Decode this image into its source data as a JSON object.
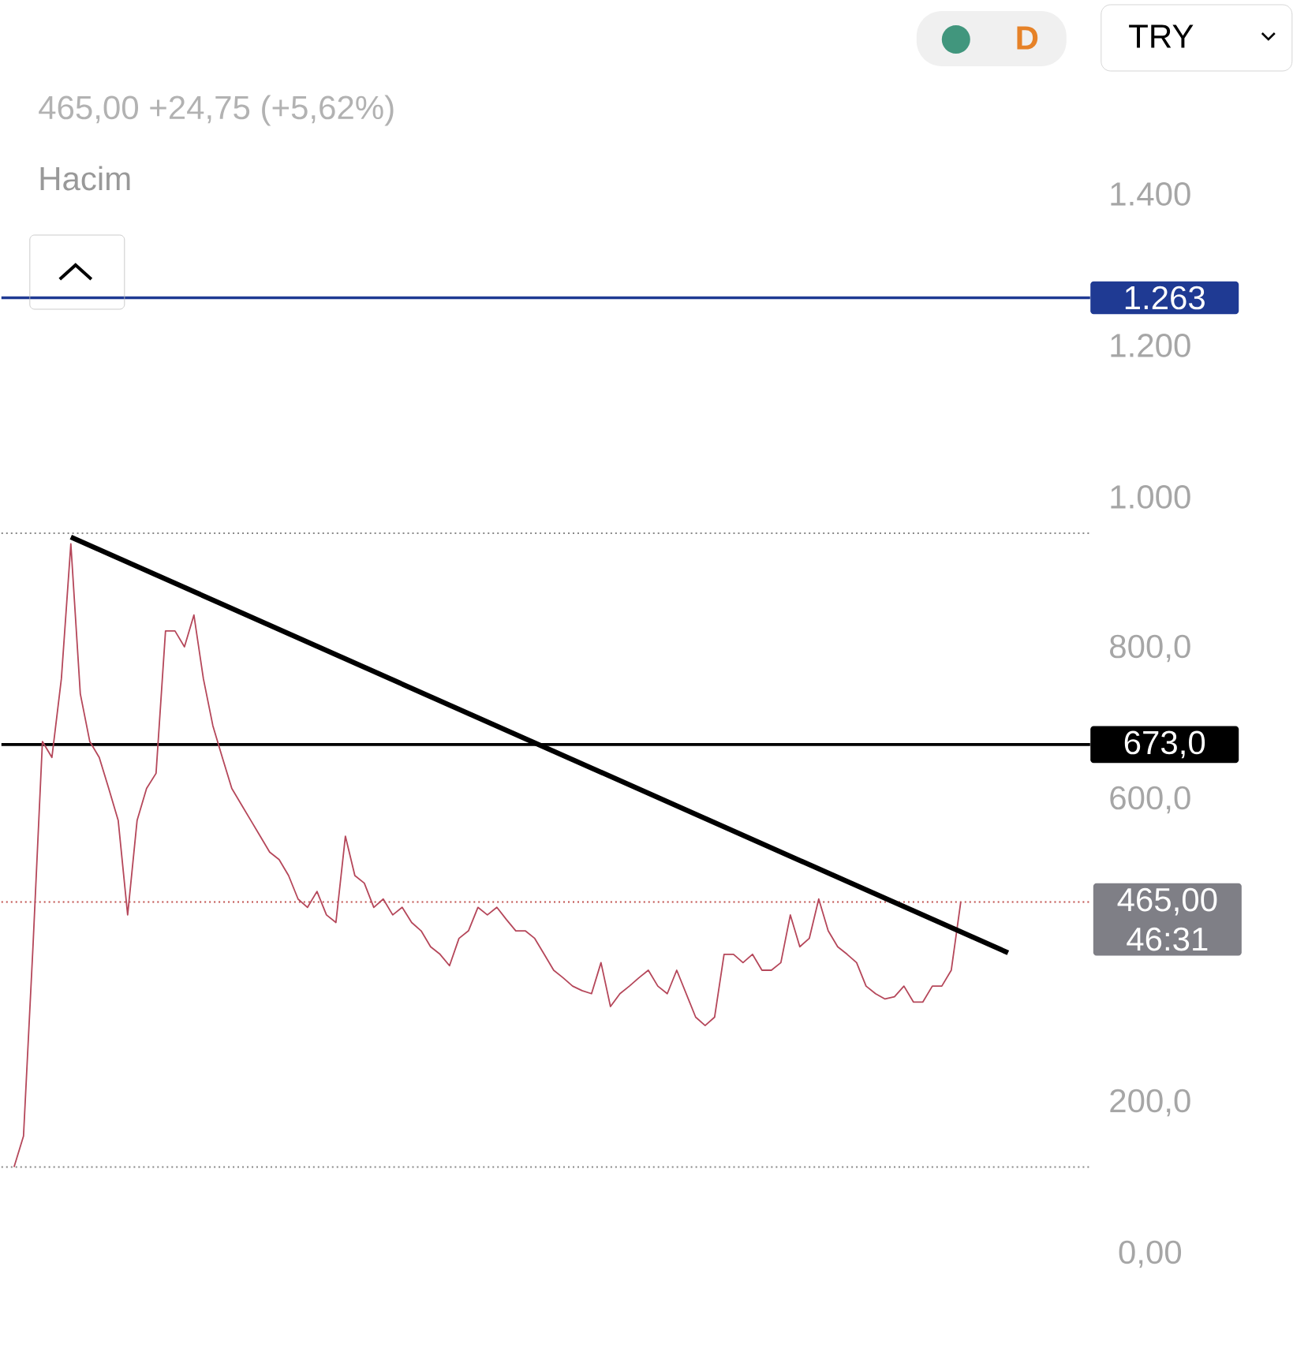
{
  "chart_data": {
    "type": "line",
    "subtitle": "465,00  +24,75 (+5,62%)",
    "annotations": [
      "Hacim",
      "D",
      "TRY",
      "46:31"
    ],
    "categories": [
      null,
      null,
      null,
      null,
      null,
      null,
      null,
      null,
      null,
      null,
      null,
      null,
      null,
      null,
      null,
      null,
      null,
      null,
      null,
      null,
      null,
      null,
      null,
      null,
      null,
      null,
      null,
      null,
      null,
      null,
      null,
      null,
      null,
      null,
      null,
      null,
      null,
      null,
      null,
      null,
      null,
      null,
      null,
      null,
      null,
      null,
      null,
      null,
      null,
      null,
      null,
      null,
      null,
      null,
      null,
      null,
      null,
      null,
      null,
      null,
      null,
      null,
      null,
      null,
      null,
      null,
      null,
      null,
      null,
      null,
      null,
      null,
      null,
      null,
      null,
      null,
      null,
      null,
      null,
      null,
      null,
      null,
      null,
      null,
      null,
      null,
      null,
      null,
      null,
      null,
      null,
      null,
      null,
      null,
      null,
      null,
      null,
      null,
      null,
      null,
      null,
      null,
      null,
      null,
      null,
      null
    ],
    "series": [
      {
        "color": "#b5475a",
        "values": [
          115,
          156,
          406,
          677,
          656,
          760,
          938,
          740,
          677,
          656,
          615,
          573,
          448,
          573,
          615,
          635,
          823,
          823,
          802,
          844,
          760,
          698,
          656,
          615,
          594,
          573,
          552,
          531,
          521,
          500,
          469,
          458,
          479,
          448,
          438,
          552,
          500,
          490,
          458,
          469,
          448,
          458,
          438,
          427,
          406,
          396,
          381,
          417,
          427,
          458,
          448,
          458,
          442,
          427,
          427,
          417,
          396,
          375,
          365,
          354,
          348,
          344,
          385,
          327,
          344,
          354,
          365,
          375,
          354,
          344,
          375,
          344,
          313,
          302,
          313,
          396,
          396,
          385,
          396,
          375,
          375,
          385,
          448,
          406,
          417,
          469,
          427,
          406,
          396,
          385,
          354,
          344,
          337,
          340,
          354,
          333,
          333,
          354,
          354,
          375,
          465,
          null,
          null,
          null,
          null,
          null
        ]
      },
      {
        "type": "line",
        "color": "#000000",
        "values": [
          null,
          null,
          null,
          null,
          null,
          null,
          947,
          null,
          null,
          null,
          null,
          null,
          null,
          null,
          null,
          null,
          null,
          null,
          null,
          null,
          null,
          null,
          null,
          null,
          null,
          null,
          null,
          null,
          null,
          null,
          null,
          null,
          null,
          null,
          null,
          null,
          null,
          null,
          null,
          null,
          null,
          null,
          null,
          null,
          null,
          null,
          null,
          null,
          null,
          null,
          null,
          null,
          null,
          null,
          null,
          null,
          null,
          null,
          null,
          null,
          null,
          null,
          null,
          null,
          null,
          null,
          null,
          null,
          null,
          null,
          null,
          null,
          null,
          null,
          null,
          null,
          null,
          null,
          null,
          null,
          null,
          null,
          null,
          null,
          null,
          null,
          null,
          null,
          null,
          null,
          null,
          null,
          null,
          null,
          null,
          null,
          null,
          null,
          null,
          null,
          null,
          null,
          null,
          null,
          null,
          398
        ]
      }
    ],
    "ylim": [
      0,
      1400
    ],
    "yticks": [
      {
        "value": 0,
        "label": "0,00"
      },
      {
        "value": 200,
        "label": "200,0"
      },
      {
        "value": 600,
        "label": "600,0"
      },
      {
        "value": 800,
        "label": "800,0"
      },
      {
        "value": 1000,
        "label": "1.000"
      },
      {
        "value": 1200,
        "label": "1.200"
      },
      {
        "value": 1400,
        "label": "1.400"
      }
    ],
    "ref_lines": [
      {
        "axis": "y",
        "value": 1263,
        "label": "1.263",
        "color": "#1f3a93",
        "line_style": "solid"
      },
      {
        "axis": "y",
        "value": 673,
        "label": "673,0",
        "color": "#000000",
        "line_style": "solid"
      },
      {
        "axis": "y",
        "value": 465,
        "label": "465,00",
        "color": "#c0504d",
        "line_style": "dotted"
      },
      {
        "axis": "y",
        "value": 952,
        "color": "#888888",
        "line_style": "dotted"
      },
      {
        "axis": "y",
        "value": 115,
        "color": "#888888",
        "line_style": "dotted"
      }
    ],
    "grid": false
  }
}
